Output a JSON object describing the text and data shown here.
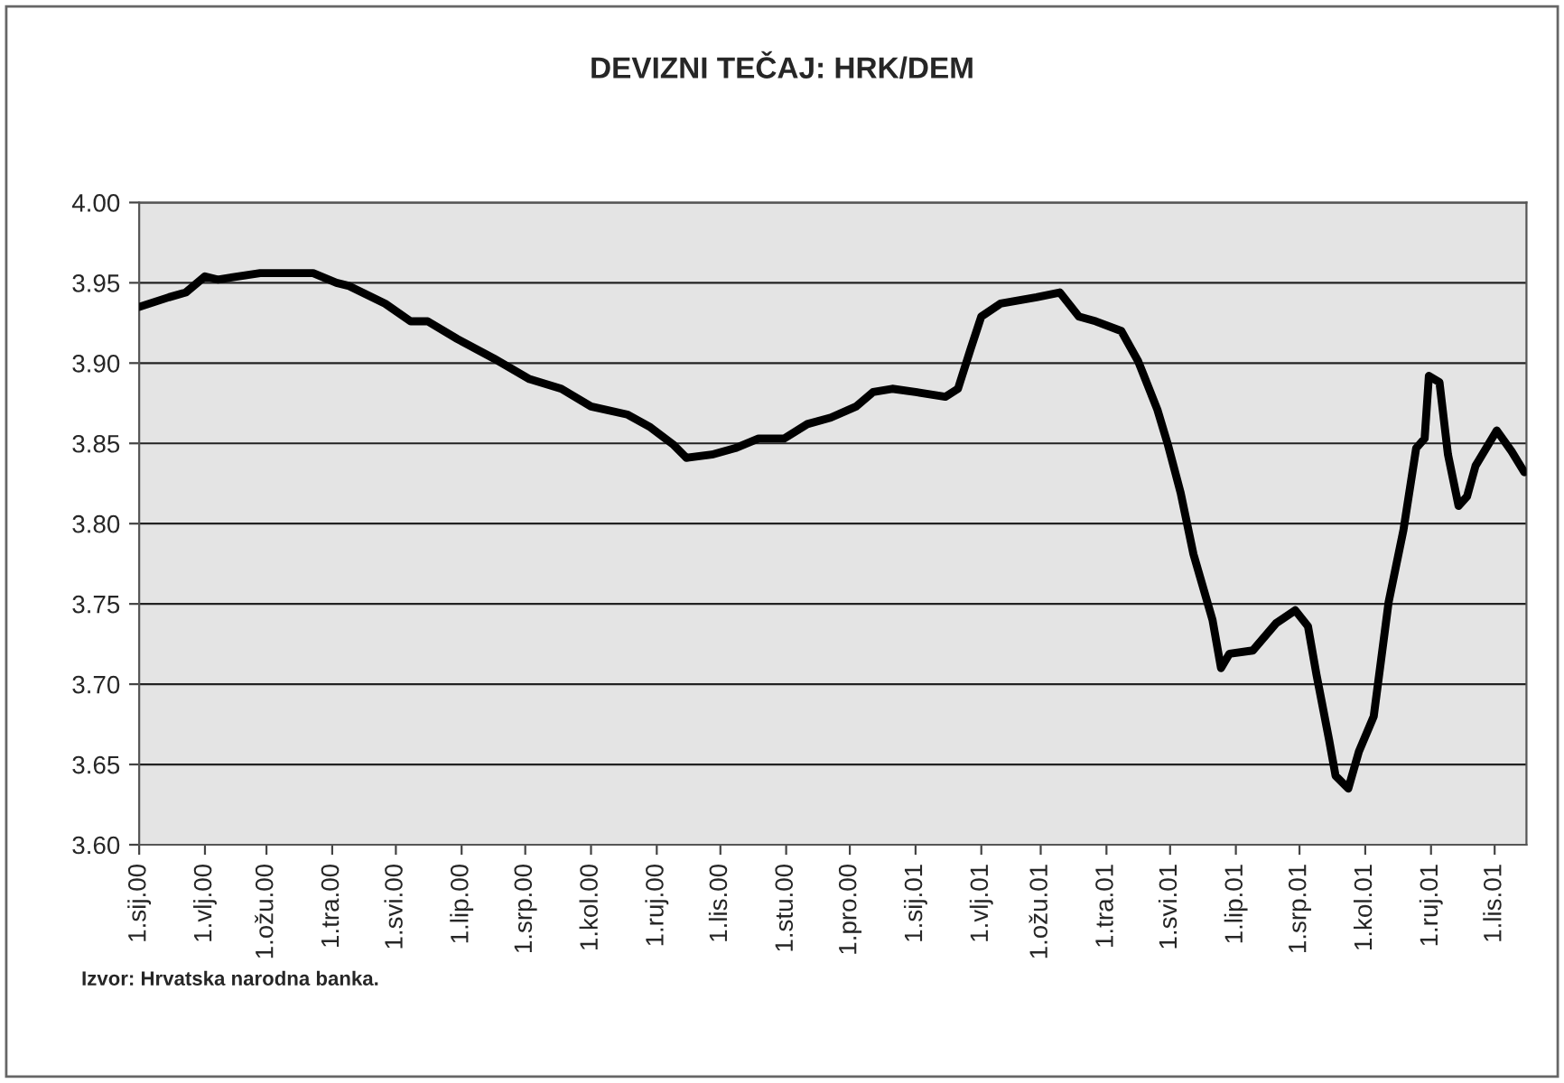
{
  "chart_data": {
    "type": "line",
    "title": "DEVIZNI TEČAJ: HRK/DEM",
    "x": [
      "2000-01-01",
      "2000-01-15",
      "2000-01-23",
      "2000-02-01",
      "2000-02-07",
      "2000-02-27",
      "2000-03-23",
      "2000-04-03",
      "2000-04-09",
      "2000-04-26",
      "2000-05-08",
      "2000-05-16",
      "2000-05-30",
      "2000-06-16",
      "2000-07-03",
      "2000-07-18",
      "2000-08-01",
      "2000-08-18",
      "2000-08-29",
      "2000-09-09",
      "2000-09-15",
      "2000-09-27",
      "2000-10-08",
      "2000-10-19",
      "2000-10-31",
      "2000-11-11",
      "2000-11-22",
      "2000-12-04",
      "2000-12-12",
      "2000-12-21",
      "2001-01-01",
      "2001-01-15",
      "2001-01-21",
      "2001-01-27",
      "2001-02-01",
      "2001-02-10",
      "2001-02-27",
      "2001-03-10",
      "2001-03-19",
      "2001-03-27",
      "2001-04-08",
      "2001-04-16",
      "2001-04-25",
      "2001-04-30",
      "2001-05-06",
      "2001-05-12",
      "2001-05-21",
      "2001-05-25",
      "2001-05-29",
      "2001-06-09",
      "2001-06-20",
      "2001-06-29",
      "2001-07-05",
      "2001-07-09",
      "2001-07-15",
      "2001-07-18",
      "2001-07-24",
      "2001-07-29",
      "2001-08-05",
      "2001-08-12",
      "2001-08-19",
      "2001-08-25",
      "2001-08-29",
      "2001-08-31",
      "2001-09-05",
      "2001-09-09",
      "2001-09-14",
      "2001-09-18",
      "2001-09-22",
      "2001-10-02",
      "2001-10-09",
      "2001-10-15"
    ],
    "series": [
      {
        "color": "#000000",
        "values": [
          3.935,
          3.941,
          3.944,
          3.954,
          3.952,
          3.956,
          3.956,
          3.95,
          3.948,
          3.937,
          3.926,
          3.926,
          3.915,
          3.903,
          3.89,
          3.884,
          3.873,
          3.868,
          3.86,
          3.849,
          3.841,
          3.843,
          3.847,
          3.853,
          3.853,
          3.862,
          3.866,
          3.873,
          3.882,
          3.884,
          3.882,
          3.879,
          3.884,
          3.909,
          3.929,
          3.937,
          3.941,
          3.944,
          3.929,
          3.926,
          3.92,
          3.901,
          3.871,
          3.849,
          3.819,
          3.781,
          3.74,
          3.71,
          3.719,
          3.721,
          3.738,
          3.746,
          3.736,
          3.706,
          3.665,
          3.643,
          3.635,
          3.658,
          3.68,
          3.751,
          3.796,
          3.847,
          3.853,
          3.892,
          3.888,
          3.843,
          3.811,
          3.817,
          3.836,
          3.858,
          3.845,
          3.832
        ]
      }
    ],
    "xlim": [
      "2000-01-01",
      "2001-10-16"
    ],
    "xticks": [
      {
        "value": "2000-01-01",
        "label": "1.sij.00"
      },
      {
        "value": "2000-02-01",
        "label": "1.vlj.00"
      },
      {
        "value": "2000-03-01",
        "label": "1.ožu.00"
      },
      {
        "value": "2000-04-01",
        "label": "1.tra.00"
      },
      {
        "value": "2000-05-01",
        "label": "1.svi.00"
      },
      {
        "value": "2000-06-01",
        "label": "1.lip.00"
      },
      {
        "value": "2000-07-01",
        "label": "1.srp.00"
      },
      {
        "value": "2000-08-01",
        "label": "1.kol.00"
      },
      {
        "value": "2000-09-01",
        "label": "1.ruj.00"
      },
      {
        "value": "2000-10-01",
        "label": "1.lis.00"
      },
      {
        "value": "2000-11-01",
        "label": "1.stu.00"
      },
      {
        "value": "2000-12-01",
        "label": "1.pro.00"
      },
      {
        "value": "2001-01-01",
        "label": "1.sij.01"
      },
      {
        "value": "2001-02-01",
        "label": "1.vlj.01"
      },
      {
        "value": "2001-03-01",
        "label": "1.ožu.01"
      },
      {
        "value": "2001-04-01",
        "label": "1.tra.01"
      },
      {
        "value": "2001-05-01",
        "label": "1.svi.01"
      },
      {
        "value": "2001-06-01",
        "label": "1.lip.01"
      },
      {
        "value": "2001-07-01",
        "label": "1.srp.01"
      },
      {
        "value": "2001-08-01",
        "label": "1.kol.01"
      },
      {
        "value": "2001-09-01",
        "label": "1.ruj.01"
      },
      {
        "value": "2001-10-01",
        "label": "1.lis.01"
      }
    ],
    "ylim": [
      3.6,
      4.0
    ],
    "yticks": [
      {
        "value": 3.6,
        "label": "3.60"
      },
      {
        "value": 3.65,
        "label": "3.65"
      },
      {
        "value": 3.7,
        "label": "3.70"
      },
      {
        "value": 3.75,
        "label": "3.75"
      },
      {
        "value": 3.8,
        "label": "3.80"
      },
      {
        "value": 3.85,
        "label": "3.85"
      },
      {
        "value": 3.9,
        "label": "3.90"
      },
      {
        "value": 3.95,
        "label": "3.95"
      },
      {
        "value": 4.0,
        "label": "4.00"
      }
    ],
    "grid": "y",
    "line_style": "solid",
    "annotations": [
      "Izvor: Hrvatska narodna banka."
    ]
  }
}
